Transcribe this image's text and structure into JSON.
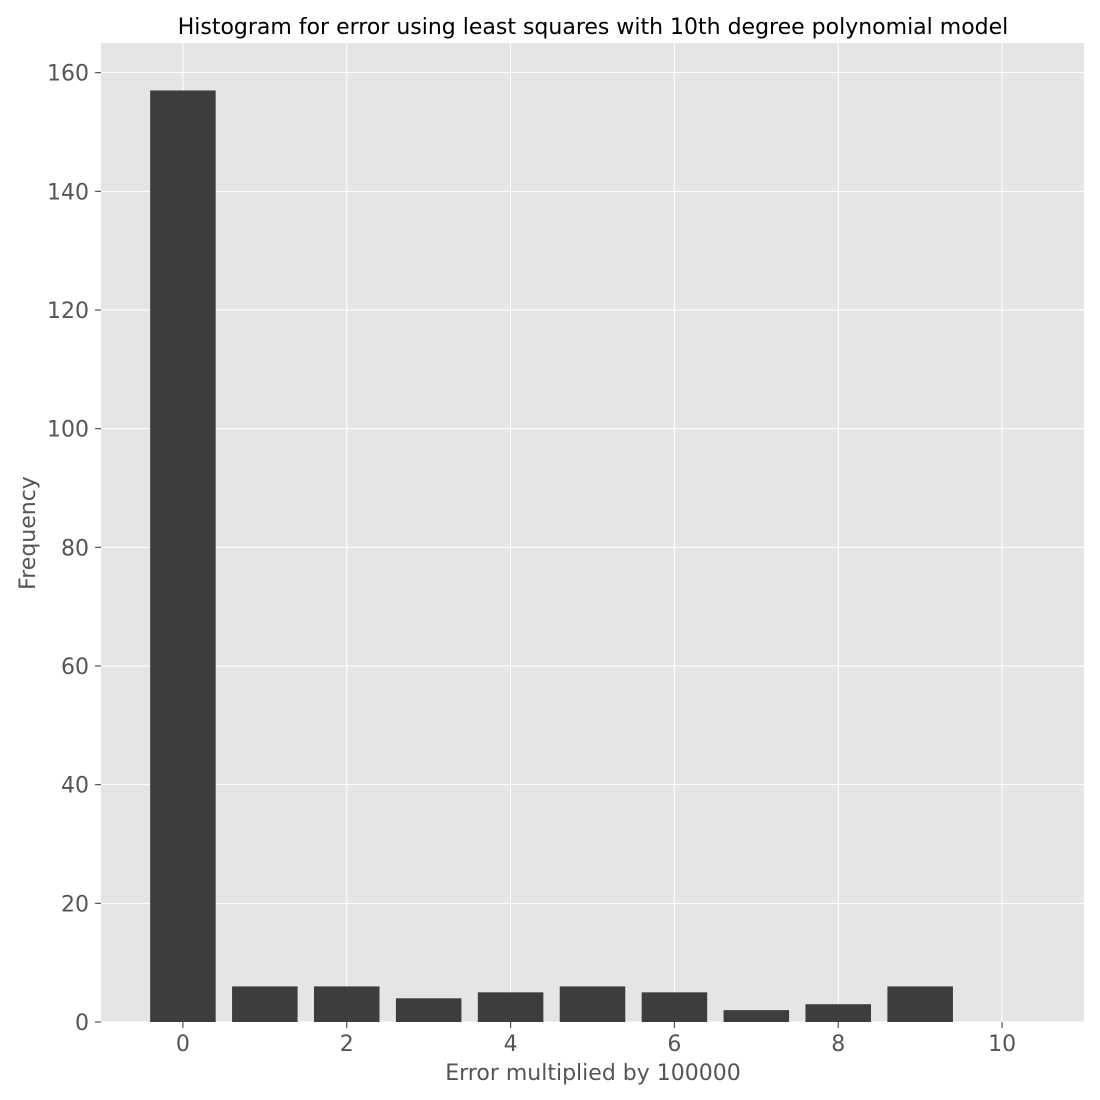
{
  "chart_data": {
    "type": "bar",
    "title": "Histogram for error using least squares with 10th degree polynomial model",
    "xlabel": "Error multiplied by 100000",
    "ylabel": "Frequency",
    "categories": [
      0,
      1,
      2,
      3,
      4,
      5,
      6,
      7,
      8,
      9
    ],
    "values": [
      157,
      6,
      6,
      4,
      5,
      6,
      5,
      2,
      3,
      6
    ],
    "xlim": [
      -1,
      11
    ],
    "ylim": [
      0,
      165
    ],
    "xticks": [
      0,
      2,
      4,
      6,
      8,
      10
    ],
    "yticks": [
      0,
      20,
      40,
      60,
      80,
      100,
      120,
      140,
      160
    ],
    "bar_width": 0.8,
    "grid": true,
    "colors": {
      "bar": "#3d3d3d",
      "plot_bg": "#e5e5e5",
      "grid": "#ffffff"
    }
  }
}
